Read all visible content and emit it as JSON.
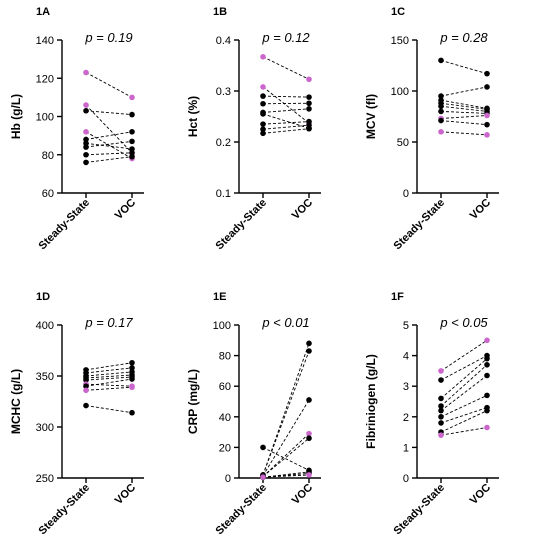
{
  "colors": {
    "black_series": "#000000",
    "highlight": "#cc66cc"
  },
  "chart_data": [
    {
      "panel": "1A",
      "type": "scatter",
      "categories": [
        "Steady-State",
        "VOC"
      ],
      "ylabel": "Hb (g/L)",
      "ylim": [
        60,
        140
      ],
      "yticks": [
        60,
        80,
        100,
        120,
        140
      ],
      "annotation": "p = 0.19",
      "pairs": [
        {
          "ss": 123,
          "voc": 110,
          "highlight": true
        },
        {
          "ss": 106,
          "voc": 81,
          "highlight": true
        },
        {
          "ss": 103,
          "voc": 101,
          "highlight": false
        },
        {
          "ss": 92,
          "voc": 78,
          "highlight": true
        },
        {
          "ss": 88,
          "voc": 92,
          "highlight": false
        },
        {
          "ss": 86,
          "voc": 83,
          "highlight": false
        },
        {
          "ss": 84,
          "voc": 87,
          "highlight": false
        },
        {
          "ss": 80,
          "voc": 81,
          "highlight": false
        },
        {
          "ss": 76,
          "voc": 79,
          "highlight": false
        }
      ]
    },
    {
      "panel": "1B",
      "type": "scatter",
      "categories": [
        "Steady-State",
        "VOC"
      ],
      "ylabel": "Hct (%)",
      "ylim": [
        0.1,
        0.4
      ],
      "yticks": [
        0.1,
        0.2,
        0.3,
        0.4
      ],
      "annotation": "p = 0.12",
      "pairs": [
        {
          "ss": 0.367,
          "voc": 0.323,
          "highlight": true
        },
        {
          "ss": 0.308,
          "voc": 0.237,
          "highlight": true
        },
        {
          "ss": 0.29,
          "voc": 0.288,
          "highlight": false
        },
        {
          "ss": 0.275,
          "voc": 0.276,
          "highlight": false
        },
        {
          "ss": 0.258,
          "voc": 0.265,
          "highlight": false
        },
        {
          "ss": 0.255,
          "voc": 0.227,
          "highlight": false
        },
        {
          "ss": 0.235,
          "voc": 0.24,
          "highlight": false
        },
        {
          "ss": 0.225,
          "voc": 0.233,
          "highlight": false
        },
        {
          "ss": 0.217,
          "voc": 0.226,
          "highlight": false
        }
      ]
    },
    {
      "panel": "1C",
      "type": "scatter",
      "categories": [
        "Steady-State",
        "VOC"
      ],
      "ylabel": "MCV (fl)",
      "ylim": [
        0,
        150
      ],
      "yticks": [
        0,
        50,
        100,
        150
      ],
      "annotation": "p = 0.28",
      "pairs": [
        {
          "ss": 130,
          "voc": 117,
          "highlight": false
        },
        {
          "ss": 95,
          "voc": 104,
          "highlight": false
        },
        {
          "ss": 91,
          "voc": 83,
          "highlight": false
        },
        {
          "ss": 88,
          "voc": 82,
          "highlight": false
        },
        {
          "ss": 85,
          "voc": 80,
          "highlight": false
        },
        {
          "ss": 80,
          "voc": 78,
          "highlight": false
        },
        {
          "ss": 73,
          "voc": 76,
          "highlight": true
        },
        {
          "ss": 71,
          "voc": 67,
          "highlight": false
        },
        {
          "ss": 60,
          "voc": 57,
          "highlight": true
        }
      ]
    },
    {
      "panel": "1D",
      "type": "scatter",
      "categories": [
        "Steady-State",
        "VOC"
      ],
      "ylabel": "MCHC (g/L)",
      "ylim": [
        250,
        400
      ],
      "yticks": [
        250,
        300,
        350,
        400
      ],
      "annotation": "p = 0.17",
      "pairs": [
        {
          "ss": 356,
          "voc": 363,
          "highlight": false
        },
        {
          "ss": 353,
          "voc": 358,
          "highlight": false
        },
        {
          "ss": 350,
          "voc": 354,
          "highlight": false
        },
        {
          "ss": 348,
          "voc": 351,
          "highlight": false
        },
        {
          "ss": 346,
          "voc": 349,
          "highlight": false
        },
        {
          "ss": 342,
          "voc": 340,
          "highlight": true
        },
        {
          "ss": 340,
          "voc": 347,
          "highlight": false
        },
        {
          "ss": 336,
          "voc": 339,
          "highlight": true
        },
        {
          "ss": 321,
          "voc": 314,
          "highlight": false
        }
      ]
    },
    {
      "panel": "1E",
      "type": "scatter",
      "categories": [
        "Steady-State",
        "VOC"
      ],
      "ylabel": "CRP (mg/L)",
      "ylim": [
        0,
        100
      ],
      "yticks": [
        0,
        20,
        40,
        60,
        80,
        100
      ],
      "annotation": "p < 0.01",
      "pairs": [
        {
          "ss": 20,
          "voc": 5,
          "highlight": false
        },
        {
          "ss": 2,
          "voc": 88,
          "highlight": false
        },
        {
          "ss": 2,
          "voc": 83,
          "highlight": false
        },
        {
          "ss": 1.5,
          "voc": 51,
          "highlight": false
        },
        {
          "ss": 1,
          "voc": 29,
          "highlight": true
        },
        {
          "ss": 1,
          "voc": 26,
          "highlight": false
        },
        {
          "ss": 0.5,
          "voc": 4,
          "highlight": false
        },
        {
          "ss": 0.5,
          "voc": 3,
          "highlight": false
        },
        {
          "ss": 0.5,
          "voc": 2,
          "highlight": true
        }
      ]
    },
    {
      "panel": "1F",
      "type": "scatter",
      "categories": [
        "Steady-State",
        "VOC"
      ],
      "ylabel": "Fibriniogen (g/L)",
      "ylim": [
        0,
        5
      ],
      "yticks": [
        0,
        1,
        2,
        3,
        4,
        5
      ],
      "annotation": "p < 0.05",
      "pairs": [
        {
          "ss": 3.5,
          "voc": 4.5,
          "highlight": true
        },
        {
          "ss": 3.2,
          "voc": 4.0,
          "highlight": false
        },
        {
          "ss": 2.6,
          "voc": 3.9,
          "highlight": false
        },
        {
          "ss": 2.35,
          "voc": 3.7,
          "highlight": false
        },
        {
          "ss": 2.2,
          "voc": 3.35,
          "highlight": false
        },
        {
          "ss": 2.0,
          "voc": 2.7,
          "highlight": false
        },
        {
          "ss": 1.8,
          "voc": 2.3,
          "highlight": false
        },
        {
          "ss": 1.5,
          "voc": 2.2,
          "highlight": false
        },
        {
          "ss": 1.4,
          "voc": 1.65,
          "highlight": true
        }
      ]
    }
  ]
}
